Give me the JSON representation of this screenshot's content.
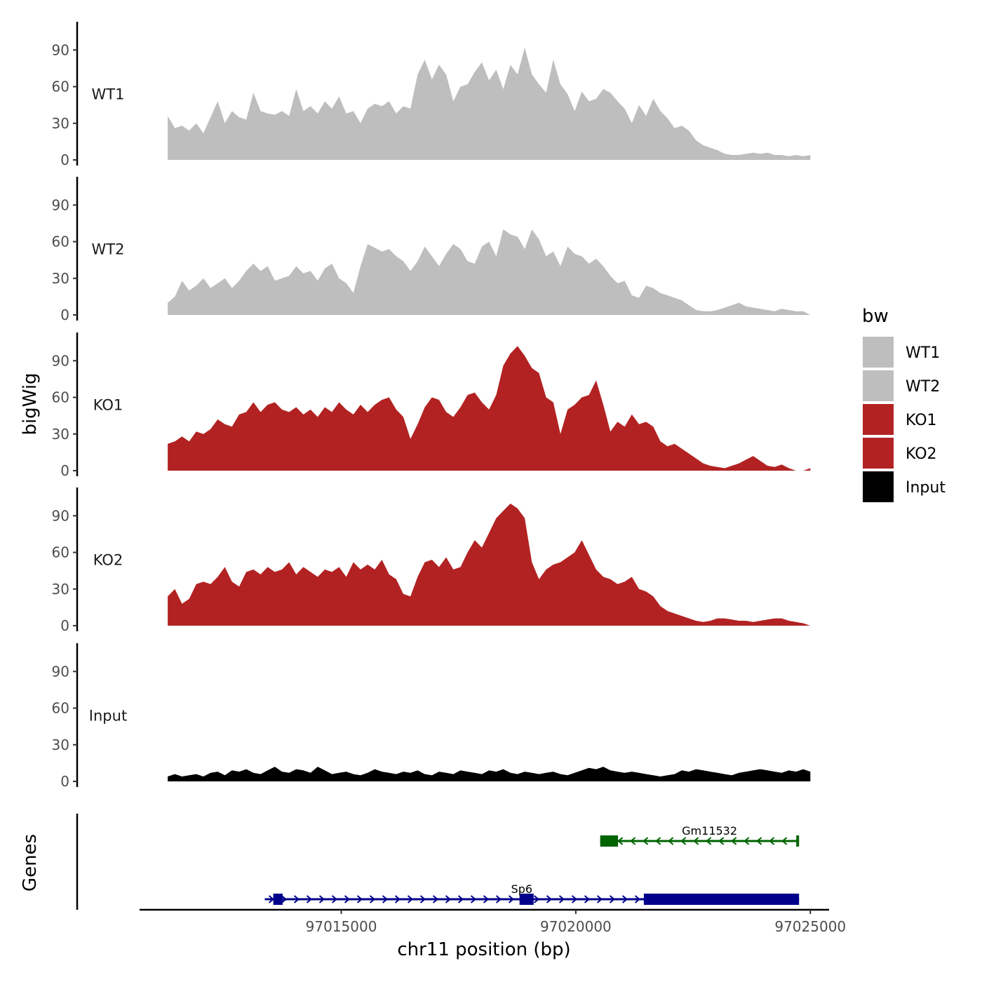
{
  "chart_data": {
    "type": "area",
    "chromosome": "chr11",
    "x_range": [
      97011300,
      97025000
    ],
    "xlim": [
      97010700,
      97025400
    ],
    "ylim": [
      0,
      112
    ],
    "y_ticks": [
      0,
      30,
      60,
      90
    ],
    "y_tick_labels": [
      "0",
      "30",
      "60",
      "90"
    ],
    "x_ticks": [
      97015000,
      97020000,
      97025000
    ],
    "x_tick_labels": [
      "97015000",
      "97020000",
      "97025000"
    ],
    "ylabel": "bigWig",
    "xlabel": "chr11 position (bp)",
    "genes_label": "Genes",
    "legend_title": "bw",
    "series": [
      {
        "name": "WT1",
        "color": "#bebebe",
        "values": [
          36,
          26,
          28,
          24,
          30,
          22,
          35,
          48,
          30,
          40,
          35,
          33,
          55,
          40,
          38,
          37,
          40,
          36,
          58,
          40,
          44,
          38,
          48,
          42,
          52,
          38,
          40,
          30,
          42,
          46,
          44,
          48,
          38,
          44,
          42,
          70,
          82,
          66,
          78,
          70,
          48,
          60,
          62,
          72,
          80,
          65,
          74,
          58,
          78,
          70,
          92,
          70,
          62,
          55,
          82,
          62,
          54,
          40,
          56,
          48,
          50,
          58,
          55,
          48,
          42,
          30,
          45,
          36,
          50,
          40,
          34,
          26,
          28,
          24,
          16,
          12,
          10,
          8,
          5,
          4,
          4,
          5,
          6,
          5,
          6,
          4,
          4,
          3,
          4,
          3,
          4
        ]
      },
      {
        "name": "WT2",
        "color": "#bebebe",
        "values": [
          10,
          15,
          28,
          20,
          24,
          30,
          22,
          26,
          30,
          22,
          28,
          36,
          42,
          36,
          40,
          28,
          30,
          32,
          40,
          34,
          36,
          28,
          38,
          42,
          30,
          26,
          18,
          40,
          58,
          55,
          52,
          54,
          48,
          44,
          36,
          44,
          56,
          48,
          40,
          50,
          58,
          54,
          44,
          42,
          56,
          60,
          48,
          70,
          66,
          64,
          54,
          70,
          62,
          48,
          52,
          40,
          56,
          50,
          48,
          42,
          46,
          40,
          32,
          26,
          28,
          16,
          14,
          24,
          22,
          18,
          16,
          14,
          12,
          8,
          4,
          3,
          3,
          4,
          6,
          8,
          10,
          7,
          6,
          5,
          4,
          3,
          5,
          4,
          3,
          3,
          0
        ]
      },
      {
        "name": "KO1",
        "color": "#b22222",
        "values": [
          22,
          24,
          28,
          24,
          32,
          30,
          34,
          42,
          38,
          36,
          46,
          48,
          56,
          48,
          54,
          56,
          50,
          48,
          52,
          46,
          50,
          44,
          52,
          48,
          56,
          50,
          46,
          54,
          48,
          54,
          58,
          60,
          50,
          44,
          26,
          38,
          52,
          60,
          58,
          48,
          44,
          52,
          62,
          64,
          56,
          50,
          62,
          86,
          96,
          102,
          94,
          84,
          80,
          60,
          56,
          30,
          50,
          54,
          60,
          62,
          74,
          54,
          32,
          40,
          36,
          46,
          38,
          40,
          36,
          24,
          20,
          22,
          18,
          14,
          10,
          6,
          4,
          3,
          2,
          4,
          6,
          9,
          12,
          8,
          4,
          3,
          5,
          2,
          0,
          0,
          2
        ]
      },
      {
        "name": "KO2",
        "color": "#b22222",
        "values": [
          24,
          30,
          18,
          22,
          34,
          36,
          34,
          40,
          48,
          36,
          32,
          44,
          46,
          42,
          48,
          44,
          46,
          52,
          42,
          48,
          44,
          40,
          46,
          44,
          48,
          40,
          52,
          46,
          50,
          46,
          54,
          42,
          38,
          26,
          24,
          40,
          52,
          54,
          48,
          56,
          46,
          48,
          60,
          70,
          64,
          76,
          88,
          94,
          100,
          96,
          88,
          52,
          38,
          46,
          50,
          52,
          56,
          60,
          70,
          58,
          46,
          40,
          38,
          34,
          36,
          40,
          30,
          28,
          24,
          16,
          12,
          10,
          8,
          6,
          4,
          3,
          4,
          6,
          6,
          5,
          4,
          4,
          3,
          4,
          5,
          6,
          6,
          4,
          3,
          2,
          0
        ]
      },
      {
        "name": "Input",
        "color": "#000000",
        "values": [
          4,
          6,
          4,
          5,
          6,
          4,
          7,
          8,
          5,
          9,
          8,
          10,
          7,
          6,
          9,
          12,
          8,
          7,
          10,
          9,
          7,
          12,
          9,
          6,
          7,
          8,
          6,
          5,
          7,
          10,
          8,
          7,
          6,
          8,
          7,
          9,
          6,
          5,
          8,
          7,
          6,
          9,
          8,
          7,
          6,
          9,
          8,
          10,
          7,
          6,
          8,
          7,
          6,
          7,
          8,
          6,
          5,
          7,
          9,
          11,
          10,
          12,
          9,
          8,
          7,
          8,
          7,
          6,
          5,
          4,
          5,
          6,
          9,
          8,
          10,
          9,
          8,
          7,
          6,
          5,
          7,
          8,
          9,
          10,
          9,
          8,
          7,
          9,
          8,
          10,
          8
        ]
      }
    ],
    "genes": [
      {
        "name": "Gm11532",
        "strand": "-",
        "color": "#006400",
        "start": 97020520,
        "end": 97024760,
        "exons": [
          [
            97020520,
            97020900
          ],
          [
            97024700,
            97024760
          ]
        ]
      },
      {
        "name": "Sp6",
        "strand": "+",
        "color": "#00008b",
        "start": 97013370,
        "end": 97024760,
        "exons": [
          [
            97013550,
            97013750
          ],
          [
            97018800,
            97019100
          ],
          [
            97021450,
            97024760
          ]
        ]
      }
    ]
  }
}
